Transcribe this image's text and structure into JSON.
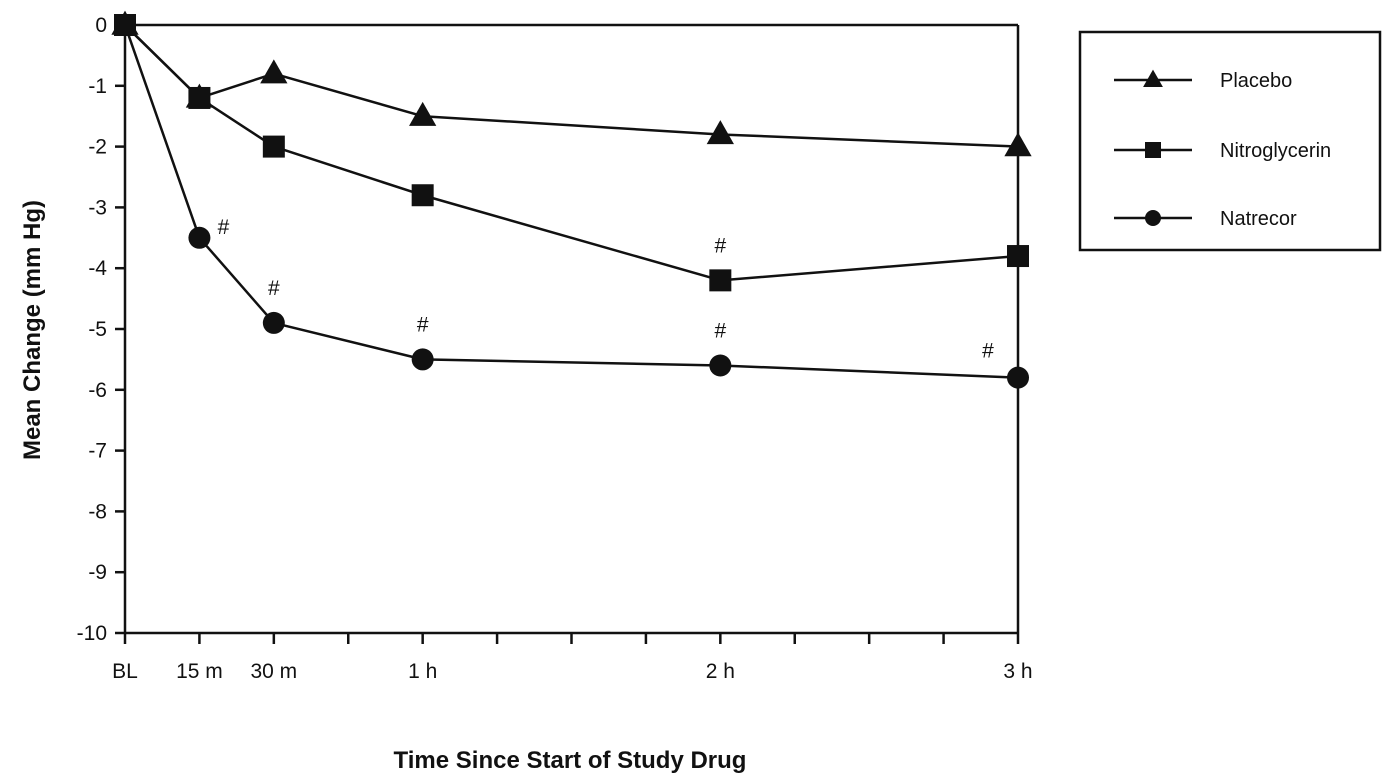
{
  "chart_data": {
    "type": "line",
    "xlabel": "Time Since Start of Study Drug",
    "ylabel": "Mean Change (mm Hg)",
    "ylim": [
      -10,
      0
    ],
    "yticks": [
      0,
      -1,
      -2,
      -3,
      -4,
      -5,
      -6,
      -7,
      -8,
      -9,
      -10
    ],
    "x_unit": "hours",
    "x": [
      0,
      0.25,
      0.5,
      1,
      2,
      3
    ],
    "x_ticks": [
      {
        "value": 0,
        "label": "BL"
      },
      {
        "value": 0.25,
        "label": "15 m"
      },
      {
        "value": 0.5,
        "label": "30 m"
      },
      {
        "value": 0.75,
        "label": ""
      },
      {
        "value": 1,
        "label": "1 h"
      },
      {
        "value": 1.25,
        "label": ""
      },
      {
        "value": 1.5,
        "label": ""
      },
      {
        "value": 1.75,
        "label": ""
      },
      {
        "value": 2,
        "label": "2 h"
      },
      {
        "value": 2.25,
        "label": ""
      },
      {
        "value": 2.5,
        "label": ""
      },
      {
        "value": 2.75,
        "label": ""
      },
      {
        "value": 3,
        "label": "3 h"
      }
    ],
    "series": [
      {
        "name": "Placebo",
        "marker": "triangle",
        "values": [
          0,
          -1.2,
          -0.8,
          -1.5,
          -1.8,
          -2.0
        ]
      },
      {
        "name": "Nitroglycerin",
        "marker": "square",
        "values": [
          0,
          -1.2,
          -2.0,
          -2.8,
          -4.2,
          -3.8
        ]
      },
      {
        "name": "Natrecor",
        "marker": "circle",
        "values": [
          0,
          -3.5,
          -4.9,
          -5.5,
          -5.6,
          -5.8
        ]
      }
    ],
    "annotations": [
      {
        "text": "#",
        "series": "Natrecor",
        "x": 0.25
      },
      {
        "text": "#",
        "series": "Natrecor",
        "x": 0.5
      },
      {
        "text": "#",
        "series": "Natrecor",
        "x": 1
      },
      {
        "text": "#",
        "series": "Natrecor",
        "x": 2
      },
      {
        "text": "#",
        "series": "Natrecor",
        "x": 3
      },
      {
        "text": "#",
        "series": "Nitroglycerin",
        "x": 2
      }
    ],
    "legend": {
      "placement": "right"
    },
    "grid": false,
    "colors": {
      "line": "#111111",
      "background": "#ffffff"
    }
  }
}
